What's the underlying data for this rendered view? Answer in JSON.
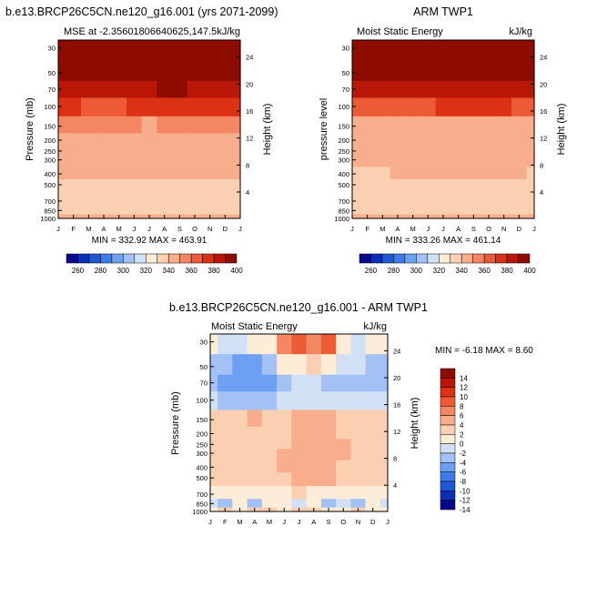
{
  "colorbar_ticks": {
    "absolute": [
      "260",
      "280",
      "300",
      "320",
      "340",
      "360",
      "380",
      "400"
    ],
    "difference": [
      "14",
      "12",
      "10",
      "8",
      "6",
      "4",
      "2",
      "0",
      "-2",
      "-4",
      "-6",
      "-8",
      "-10",
      "-12",
      "-14"
    ]
  },
  "palettes": {
    "absolute": [
      "#08088a",
      "#0b2fb5",
      "#1f57d6",
      "#3d7bea",
      "#6d9ff2",
      "#a3c1f4",
      "#d1e0f5",
      "#fdecd8",
      "#fbd0b2",
      "#f8ad8c",
      "#f48763",
      "#ec5a36",
      "#dc3114",
      "#b81708",
      "#8e0b00"
    ],
    "difference": [
      "#08088a",
      "#0b2fb5",
      "#1f57d6",
      "#3d7bea",
      "#6d9ff2",
      "#a3c1f4",
      "#d1e0f5",
      "#fdecd8",
      "#fbd0b2",
      "#f8ad8c",
      "#f48763",
      "#ec5a36",
      "#dc3114",
      "#b81708",
      "#8e0b00"
    ]
  },
  "chart_data": [
    {
      "type": "heatmap",
      "title": "b.e13.BRCP26C5CN.ne120_g16.001 (yrs 2071-2099)",
      "subtitle_left": "MSE at -2.35601806640625,147.5",
      "subtitle_right": "kJ/kg",
      "xlabel": "",
      "ylabel": "Pressure (mb)",
      "ylabel_right": "Height (km)",
      "x_ticks": [
        "J",
        "F",
        "M",
        "A",
        "M",
        "J",
        "J",
        "A",
        "S",
        "O",
        "N",
        "D",
        "J"
      ],
      "y_ticks": [
        "30",
        "50",
        "70",
        "100",
        "150",
        "200",
        "250",
        "300",
        "400",
        "500",
        "700",
        "850",
        "1000"
      ],
      "y_ticks_right": [
        "24",
        "20",
        "16",
        "12",
        "8",
        "4"
      ],
      "y_scale": "log",
      "ylim": [
        1000,
        30
      ],
      "stats": "MIN = 332.92 MAX = 463.91",
      "levels": [
        30,
        50,
        70,
        100,
        150,
        200,
        250,
        300,
        400,
        500,
        700,
        850,
        1000
      ],
      "values": [
        [
          463,
          463,
          463,
          463,
          463,
          463,
          463,
          463,
          463,
          463,
          463,
          463,
          463
        ],
        [
          400,
          398,
          396,
          396,
          397,
          399,
          401,
          402,
          402,
          401,
          400,
          399,
          400
        ],
        [
          386,
          384,
          383,
          382,
          383,
          385,
          388,
          390,
          390,
          389,
          388,
          386,
          386
        ],
        [
          371,
          370,
          368,
          367,
          368,
          370,
          372,
          374,
          374,
          373,
          372,
          371,
          371
        ],
        [
          352,
          353,
          354,
          353,
          352,
          350,
          349,
          350,
          352,
          353,
          354,
          353,
          352
        ],
        [
          343,
          343,
          343,
          343,
          343,
          343,
          343,
          343,
          343,
          343,
          343,
          343,
          343
        ],
        [
          343,
          343,
          343,
          343,
          343,
          343,
          343,
          343,
          343,
          343,
          343,
          343,
          343
        ],
        [
          342,
          342,
          342,
          342,
          342,
          342,
          342,
          342,
          342,
          342,
          342,
          342,
          342
        ],
        [
          341,
          341,
          341,
          341,
          341,
          341,
          341,
          341,
          341,
          341,
          341,
          341,
          341
        ],
        [
          337,
          338,
          338,
          336,
          338,
          338,
          337,
          338,
          337,
          338,
          338,
          338,
          338
        ],
        [
          335,
          335,
          336,
          335,
          335,
          336,
          336,
          335,
          336,
          335,
          335,
          336,
          335
        ],
        [
          337,
          336,
          336,
          337,
          336,
          336,
          336,
          336,
          337,
          336,
          337,
          337,
          337
        ],
        [
          345,
          345,
          345,
          345,
          345,
          345,
          345,
          345,
          345,
          345,
          345,
          345,
          345
        ]
      ]
    },
    {
      "type": "heatmap",
      "title": "ARM TWP1",
      "subtitle_left": "Moist Static Energy",
      "subtitle_right": "kJ/kg",
      "xlabel": "",
      "ylabel": "pressure level",
      "ylabel_right": "Height (km)",
      "x_ticks": [
        "J",
        "F",
        "M",
        "A",
        "M",
        "J",
        "J",
        "A",
        "S",
        "O",
        "N",
        "D",
        "J"
      ],
      "y_ticks": [
        "30",
        "50",
        "70",
        "100",
        "150",
        "200",
        "250",
        "300",
        "400",
        "500",
        "700",
        "850",
        "1000"
      ],
      "y_ticks_right": [
        "24",
        "20",
        "16",
        "12",
        "8",
        "4"
      ],
      "y_scale": "log",
      "ylim": [
        1000,
        30
      ],
      "stats": "MIN = 333.26 MAX = 461.14",
      "levels": [
        30,
        50,
        70,
        100,
        150,
        200,
        250,
        300,
        400,
        500,
        700,
        850,
        1000
      ],
      "values": [
        [
          461,
          461,
          461,
          461,
          461,
          461,
          461,
          461,
          461,
          461,
          461,
          461,
          461
        ],
        [
          399,
          397,
          395,
          395,
          396,
          398,
          400,
          401,
          401,
          400,
          399,
          398,
          399
        ],
        [
          384,
          383,
          382,
          381,
          382,
          384,
          387,
          389,
          388,
          388,
          386,
          385,
          384
        ],
        [
          369,
          368,
          367,
          366,
          367,
          369,
          371,
          372,
          372,
          371,
          370,
          369,
          369
        ],
        [
          345,
          345,
          345,
          345,
          345,
          345,
          345,
          345,
          345,
          345,
          345,
          345,
          345
        ],
        [
          343,
          343,
          343,
          343,
          343,
          343,
          343,
          343,
          343,
          343,
          343,
          343,
          343
        ],
        [
          342,
          342,
          342,
          342,
          342,
          342,
          342,
          342,
          342,
          342,
          342,
          342,
          342
        ],
        [
          341,
          341,
          341,
          341,
          341,
          341,
          341,
          341,
          341,
          341,
          341,
          341,
          341
        ],
        [
          339,
          339,
          339,
          341,
          341,
          341,
          341,
          341,
          341,
          341,
          341,
          341,
          339
        ],
        [
          337,
          337,
          337,
          337,
          337,
          337,
          337,
          337,
          337,
          337,
          337,
          337,
          337
        ],
        [
          336,
          336,
          336,
          336,
          336,
          336,
          336,
          336,
          336,
          336,
          336,
          336,
          336
        ],
        [
          337,
          337,
          337,
          337,
          337,
          337,
          337,
          337,
          337,
          337,
          337,
          337,
          337
        ],
        [
          345,
          345,
          345,
          345,
          345,
          345,
          345,
          345,
          345,
          345,
          345,
          345,
          345
        ]
      ]
    },
    {
      "type": "heatmap",
      "title": "b.e13.BRCP26C5CN.ne120_g16.001 - ARM TWP1",
      "subtitle_left": "Moist Static Energy",
      "subtitle_right": "kJ/kg",
      "xlabel": "",
      "ylabel": "Pressure (mb)",
      "ylabel_right": "Height (km)",
      "x_ticks": [
        "J",
        "F",
        "M",
        "A",
        "M",
        "J",
        "J",
        "A",
        "S",
        "O",
        "N",
        "D",
        "J"
      ],
      "y_ticks": [
        "30",
        "50",
        "70",
        "100",
        "150",
        "200",
        "250",
        "300",
        "400",
        "500",
        "700",
        "850",
        "1000"
      ],
      "y_ticks_right": [
        "24",
        "20",
        "16",
        "12",
        "8",
        "4"
      ],
      "y_scale": "log",
      "ylim": [
        1000,
        30
      ],
      "stats": "MIN =  -6.18 MAX =   8.60",
      "levels": [
        30,
        50,
        70,
        100,
        150,
        200,
        250,
        300,
        400,
        500,
        700,
        850,
        1000
      ],
      "values": [
        [
          1,
          -1,
          -1,
          0,
          1,
          7,
          8,
          7,
          8,
          1,
          -1,
          1,
          1
        ],
        [
          -3,
          -4,
          -5,
          -5,
          -4,
          0,
          1,
          2,
          1,
          -1,
          -2,
          -3,
          -3
        ],
        [
          -3,
          -5,
          -5,
          -6,
          -5,
          -3,
          -1,
          -2,
          -4,
          -3,
          -4,
          -4,
          -3
        ],
        [
          -2,
          -3,
          -4,
          -3,
          -4,
          -1,
          -1,
          -1,
          -2,
          -2,
          -1,
          -2,
          -2
        ],
        [
          2,
          3,
          3,
          4,
          3,
          2,
          4,
          4,
          4,
          3,
          3,
          2,
          2
        ],
        [
          2,
          3,
          3,
          3,
          3,
          3,
          5,
          5,
          5,
          3,
          3,
          3,
          2
        ],
        [
          3,
          3,
          3,
          3,
          3,
          3,
          5,
          5,
          5,
          4,
          3,
          3,
          3
        ],
        [
          3,
          3,
          3,
          3,
          3,
          4,
          5,
          5,
          5,
          4,
          3,
          3,
          3
        ],
        [
          3,
          3,
          3,
          3,
          3,
          4,
          5,
          5,
          5,
          3,
          3,
          3,
          3
        ],
        [
          3,
          3,
          3,
          3,
          3,
          3,
          5,
          5,
          4,
          3,
          3,
          3,
          3
        ],
        [
          1,
          1,
          0,
          0,
          1,
          1,
          2,
          1,
          1,
          1,
          1,
          0,
          1
        ],
        [
          -2,
          -3,
          0,
          -3,
          0,
          0,
          -1,
          0,
          -3,
          -1,
          -3,
          0,
          -2
        ],
        [
          1,
          2,
          1,
          2,
          2,
          1,
          2,
          2,
          1,
          1,
          2,
          1,
          1
        ]
      ]
    }
  ]
}
